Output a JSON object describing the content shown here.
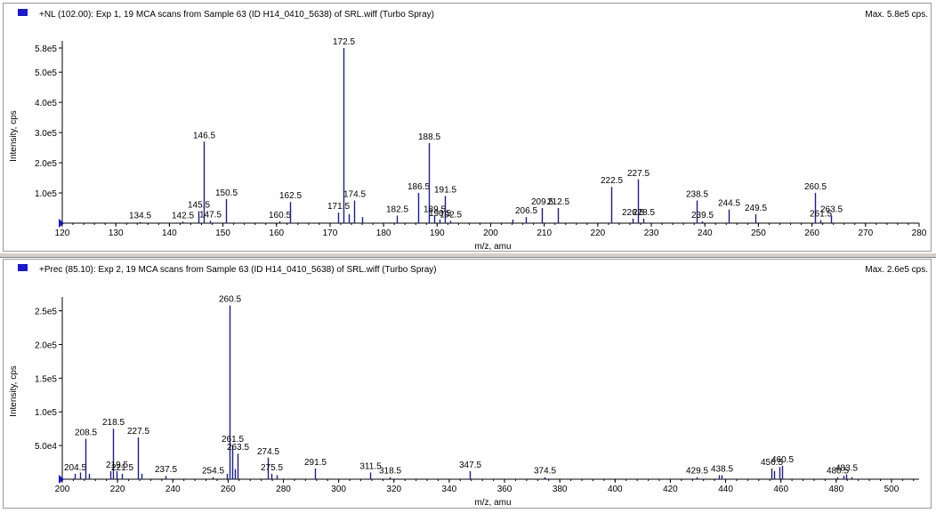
{
  "chart_data": [
    {
      "type": "bar",
      "title": "+NL (102.00): Exp 1, 19 MCA scans from Sample 63 (ID H14_0410_5638) of SRL.wiff (Turbo Spray)",
      "max_label": "Max. 5.8e5 cps.",
      "xlabel": "m/z, amu",
      "ylabel": "Intensity, cps",
      "xlim": [
        120,
        280
      ],
      "ylim": [
        0,
        580000
      ],
      "xticks": [
        120,
        130,
        140,
        150,
        160,
        170,
        180,
        190,
        200,
        210,
        220,
        230,
        240,
        250,
        260,
        270,
        280
      ],
      "yticks": [
        {
          "value": 100000,
          "label": "1.0e5"
        },
        {
          "value": 200000,
          "label": "2.0e5"
        },
        {
          "value": 300000,
          "label": "3.0e5"
        },
        {
          "value": 400000,
          "label": "4.0e5"
        },
        {
          "value": 500000,
          "label": "5.0e5"
        },
        {
          "value": 580000,
          "label": "5.8e5"
        }
      ],
      "peaks": [
        {
          "mz": 134.5,
          "intensity": 4000,
          "label": "134.5"
        },
        {
          "mz": 142.5,
          "intensity": 5000,
          "label": "142.5"
        },
        {
          "mz": 145.5,
          "intensity": 40000,
          "label": "145.5"
        },
        {
          "mz": 146.5,
          "intensity": 270000,
          "label": "146.5"
        },
        {
          "mz": 147.5,
          "intensity": 8000,
          "label": "147.5"
        },
        {
          "mz": 150.5,
          "intensity": 80000,
          "label": "150.5"
        },
        {
          "mz": 160.5,
          "intensity": 6000,
          "label": "160.5"
        },
        {
          "mz": 162.5,
          "intensity": 70000,
          "label": "162.5"
        },
        {
          "mz": 171.5,
          "intensity": 35000,
          "label": "171.5"
        },
        {
          "mz": 172.5,
          "intensity": 580000,
          "label": "172.5"
        },
        {
          "mz": 173.5,
          "intensity": 30000,
          "label": ""
        },
        {
          "mz": 174.5,
          "intensity": 75000,
          "label": "174.5"
        },
        {
          "mz": 176.0,
          "intensity": 20000,
          "label": ""
        },
        {
          "mz": 182.5,
          "intensity": 25000,
          "label": "182.5"
        },
        {
          "mz": 186.5,
          "intensity": 100000,
          "label": "186.5"
        },
        {
          "mz": 188.5,
          "intensity": 265000,
          "label": "188.5"
        },
        {
          "mz": 189.5,
          "intensity": 25000,
          "label": "189.5"
        },
        {
          "mz": 190.5,
          "intensity": 12000,
          "label": "190.5"
        },
        {
          "mz": 191.5,
          "intensity": 90000,
          "label": "191.5"
        },
        {
          "mz": 192.5,
          "intensity": 8000,
          "label": "192.5"
        },
        {
          "mz": 204.0,
          "intensity": 12000,
          "label": ""
        },
        {
          "mz": 206.5,
          "intensity": 20000,
          "label": "206.5"
        },
        {
          "mz": 209.5,
          "intensity": 50000,
          "label": "209.5"
        },
        {
          "mz": 212.5,
          "intensity": 50000,
          "label": "212.5"
        },
        {
          "mz": 222.5,
          "intensity": 120000,
          "label": "222.5"
        },
        {
          "mz": 226.5,
          "intensity": 15000,
          "label": "226.5"
        },
        {
          "mz": 227.5,
          "intensity": 145000,
          "label": "227.5"
        },
        {
          "mz": 228.5,
          "intensity": 15000,
          "label": "228.5"
        },
        {
          "mz": 238.5,
          "intensity": 75000,
          "label": "238.5"
        },
        {
          "mz": 239.5,
          "intensity": 6000,
          "label": "239.5"
        },
        {
          "mz": 244.5,
          "intensity": 45000,
          "label": "244.5"
        },
        {
          "mz": 249.5,
          "intensity": 30000,
          "label": "249.5"
        },
        {
          "mz": 260.5,
          "intensity": 100000,
          "label": "260.5"
        },
        {
          "mz": 261.5,
          "intensity": 10000,
          "label": "261.5"
        },
        {
          "mz": 263.5,
          "intensity": 25000,
          "label": "263.5"
        }
      ]
    },
    {
      "type": "bar",
      "title": "+Prec (85.10): Exp 2, 19 MCA scans from Sample 63 (ID H14_0410_5638) of SRL.wiff (Turbo Spray)",
      "max_label": "Max. 2.6e5 cps.",
      "xlabel": "m/z, amu",
      "ylabel": "Intensity, cps",
      "xlim": [
        200,
        510
      ],
      "ylim": [
        0,
        260000
      ],
      "xticks": [
        200,
        220,
        240,
        260,
        280,
        300,
        320,
        340,
        360,
        380,
        400,
        420,
        440,
        460,
        480,
        500
      ],
      "yticks": [
        {
          "value": 50000,
          "label": "5.0e4"
        },
        {
          "value": 100000,
          "label": "1.0e5"
        },
        {
          "value": 150000,
          "label": "1.5e5"
        },
        {
          "value": 200000,
          "label": "2.0e5"
        },
        {
          "value": 250000,
          "label": "2.5e5"
        }
      ],
      "peaks": [
        {
          "mz": 204.5,
          "intensity": 8000,
          "label": "204.5"
        },
        {
          "mz": 206.5,
          "intensity": 10000,
          "label": ""
        },
        {
          "mz": 208.5,
          "intensity": 60000,
          "label": "208.5"
        },
        {
          "mz": 209.5,
          "intensity": 8000,
          "label": ""
        },
        {
          "mz": 217.5,
          "intensity": 12000,
          "label": ""
        },
        {
          "mz": 218.5,
          "intensity": 75000,
          "label": "218.5"
        },
        {
          "mz": 219.5,
          "intensity": 12000,
          "label": "219.5"
        },
        {
          "mz": 221.5,
          "intensity": 8000,
          "label": "221.5"
        },
        {
          "mz": 227.5,
          "intensity": 62000,
          "label": "227.5"
        },
        {
          "mz": 228.5,
          "intensity": 8000,
          "label": ""
        },
        {
          "mz": 237.5,
          "intensity": 5000,
          "label": "237.5"
        },
        {
          "mz": 254.5,
          "intensity": 3000,
          "label": "254.5"
        },
        {
          "mz": 259.5,
          "intensity": 8000,
          "label": ""
        },
        {
          "mz": 260.5,
          "intensity": 258000,
          "label": "260.5"
        },
        {
          "mz": 261.5,
          "intensity": 50000,
          "label": "261.5"
        },
        {
          "mz": 262.5,
          "intensity": 15000,
          "label": ""
        },
        {
          "mz": 263.5,
          "intensity": 38000,
          "label": "263.5"
        },
        {
          "mz": 274.5,
          "intensity": 32000,
          "label": "274.5"
        },
        {
          "mz": 275.5,
          "intensity": 8000,
          "label": "275.5"
        },
        {
          "mz": 277.5,
          "intensity": 6000,
          "label": ""
        },
        {
          "mz": 291.5,
          "intensity": 16000,
          "label": "291.5"
        },
        {
          "mz": 311.5,
          "intensity": 10000,
          "label": "311.5"
        },
        {
          "mz": 318.5,
          "intensity": 3000,
          "label": "318.5"
        },
        {
          "mz": 347.5,
          "intensity": 12000,
          "label": "347.5"
        },
        {
          "mz": 374.5,
          "intensity": 3000,
          "label": "374.5"
        },
        {
          "mz": 429.5,
          "intensity": 3000,
          "label": "429.5"
        },
        {
          "mz": 437.5,
          "intensity": 6000,
          "label": ""
        },
        {
          "mz": 438.5,
          "intensity": 6000,
          "label": "438.5"
        },
        {
          "mz": 456.5,
          "intensity": 16000,
          "label": "456.5"
        },
        {
          "mz": 457.5,
          "intensity": 12000,
          "label": ""
        },
        {
          "mz": 459.5,
          "intensity": 18000,
          "label": ""
        },
        {
          "mz": 460.5,
          "intensity": 20000,
          "label": "460.5"
        },
        {
          "mz": 480.5,
          "intensity": 3000,
          "label": "480.5"
        },
        {
          "mz": 482.5,
          "intensity": 5000,
          "label": ""
        },
        {
          "mz": 483.5,
          "intensity": 7000,
          "label": "483.5"
        },
        {
          "mz": 485.5,
          "intensity": 3000,
          "label": ""
        }
      ]
    }
  ],
  "colors": {
    "peak": "#1c1c8c",
    "marker": "#1a1acc",
    "axis": "#000000"
  }
}
